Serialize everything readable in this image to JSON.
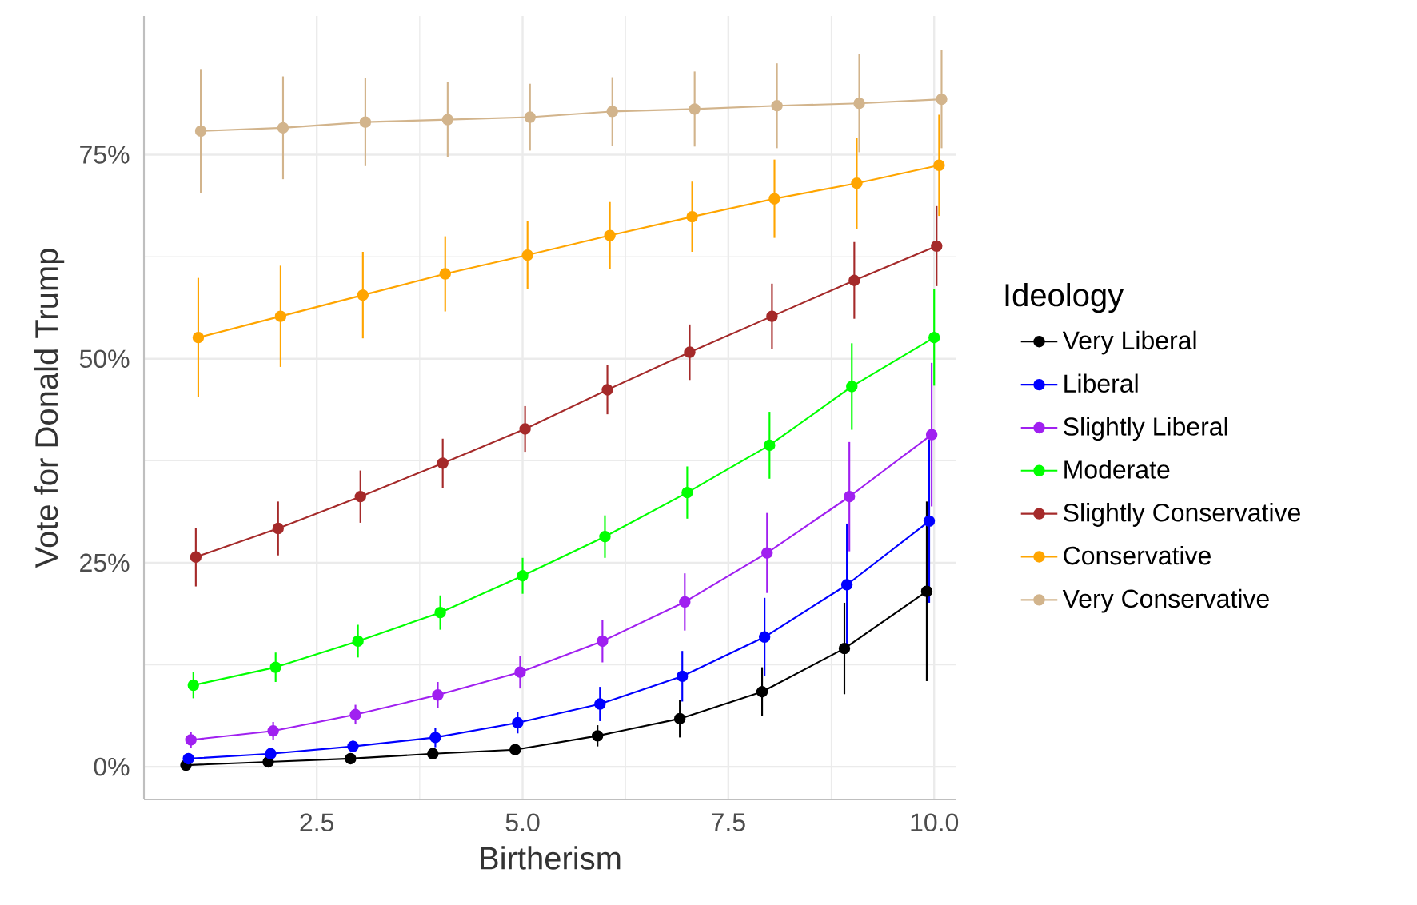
{
  "chart_data": {
    "type": "line",
    "xlabel": "Birtherism",
    "ylabel": "Vote for Donald Trump",
    "legend_title": "Ideology",
    "xlim": [
      0.4,
      10.27
    ],
    "ylim": [
      -4,
      92
    ],
    "xticks": [
      2.5,
      {
        "value": 5,
        "label": "5.0"
      },
      7.5,
      {
        "value": 10,
        "label": "10.0"
      }
    ],
    "yticks": [
      {
        "value": 0,
        "label": "0%"
      },
      {
        "value": 25,
        "label": "25%"
      },
      {
        "value": 50,
        "label": "50%"
      },
      {
        "value": 75,
        "label": "75%"
      }
    ],
    "grid": true,
    "legend": "right",
    "marker": "circle",
    "line_style": "solid",
    "series": [
      {
        "name": "Very Liberal",
        "color": "#000000",
        "x": [
          0.91,
          1.91,
          2.91,
          3.91,
          4.91,
          5.91,
          6.91,
          7.91,
          8.91,
          9.91
        ],
        "values": [
          0.2,
          0.6,
          1.0,
          1.6,
          2.1,
          3.8,
          5.9,
          9.2,
          14.5,
          21.5
        ],
        "errors": [
          0.3,
          0.4,
          0.4,
          0.5,
          0.6,
          1.3,
          2.3,
          3.0,
          5.6,
          11.0
        ]
      },
      {
        "name": "Liberal",
        "color": "#0000ff",
        "x": [
          0.94,
          1.94,
          2.94,
          3.94,
          4.94,
          5.94,
          6.94,
          7.94,
          8.94,
          9.94
        ],
        "values": [
          1.0,
          1.6,
          2.5,
          3.6,
          5.4,
          7.7,
          11.1,
          15.9,
          22.3,
          30.1
        ],
        "errors": [
          0.5,
          0.6,
          0.7,
          1.2,
          1.3,
          2.1,
          3.1,
          4.8,
          7.5,
          10.0
        ]
      },
      {
        "name": "Slightly Liberal",
        "color": "#a020f0",
        "x": [
          0.97,
          1.97,
          2.97,
          3.97,
          4.97,
          5.97,
          6.97,
          7.97,
          8.97,
          9.97
        ],
        "values": [
          3.3,
          4.4,
          6.4,
          8.8,
          11.6,
          15.4,
          20.2,
          26.2,
          33.1,
          40.7
        ],
        "errors": [
          1.0,
          1.1,
          1.2,
          1.6,
          2.0,
          2.6,
          3.5,
          4.9,
          6.7,
          8.8
        ]
      },
      {
        "name": "Moderate",
        "color": "#00ff00",
        "x": [
          1,
          2,
          3,
          4,
          5,
          6,
          7,
          8,
          9,
          10
        ],
        "values": [
          10.0,
          12.2,
          15.4,
          18.9,
          23.4,
          28.2,
          33.6,
          39.4,
          46.6,
          52.6
        ],
        "errors": [
          1.6,
          1.8,
          2.0,
          2.1,
          2.2,
          2.6,
          3.2,
          4.1,
          5.3,
          5.9
        ]
      },
      {
        "name": "Slightly Conservative",
        "color": "#a52a2a",
        "x": [
          1.03,
          2.03,
          3.03,
          4.03,
          5.03,
          6.03,
          7.03,
          8.03,
          9.03,
          10.03
        ],
        "values": [
          25.7,
          29.2,
          33.1,
          37.2,
          41.4,
          46.2,
          50.8,
          55.2,
          59.6,
          63.8
        ],
        "errors": [
          3.6,
          3.3,
          3.2,
          3.0,
          2.8,
          3.0,
          3.4,
          4.0,
          4.7,
          4.9
        ]
      },
      {
        "name": "Conservative",
        "color": "#ffa500",
        "x": [
          1.06,
          2.06,
          3.06,
          4.06,
          5.06,
          6.06,
          7.06,
          8.06,
          9.06,
          10.06
        ],
        "values": [
          52.6,
          55.2,
          57.8,
          60.4,
          62.7,
          65.1,
          67.4,
          69.6,
          71.5,
          73.7
        ],
        "errors": [
          7.3,
          6.2,
          5.3,
          4.6,
          4.2,
          4.1,
          4.3,
          4.8,
          5.6,
          6.2
        ]
      },
      {
        "name": "Very Conservative",
        "color": "#d2b48c",
        "x": [
          1.09,
          2.09,
          3.09,
          4.09,
          5.09,
          6.09,
          7.09,
          8.09,
          9.09,
          10.09
        ],
        "values": [
          77.9,
          78.3,
          79.0,
          79.3,
          79.6,
          80.3,
          80.6,
          81.0,
          81.3,
          81.8
        ],
        "errors": [
          7.6,
          6.3,
          5.4,
          4.6,
          4.1,
          4.2,
          4.6,
          5.2,
          6.0,
          6.0
        ]
      }
    ]
  }
}
